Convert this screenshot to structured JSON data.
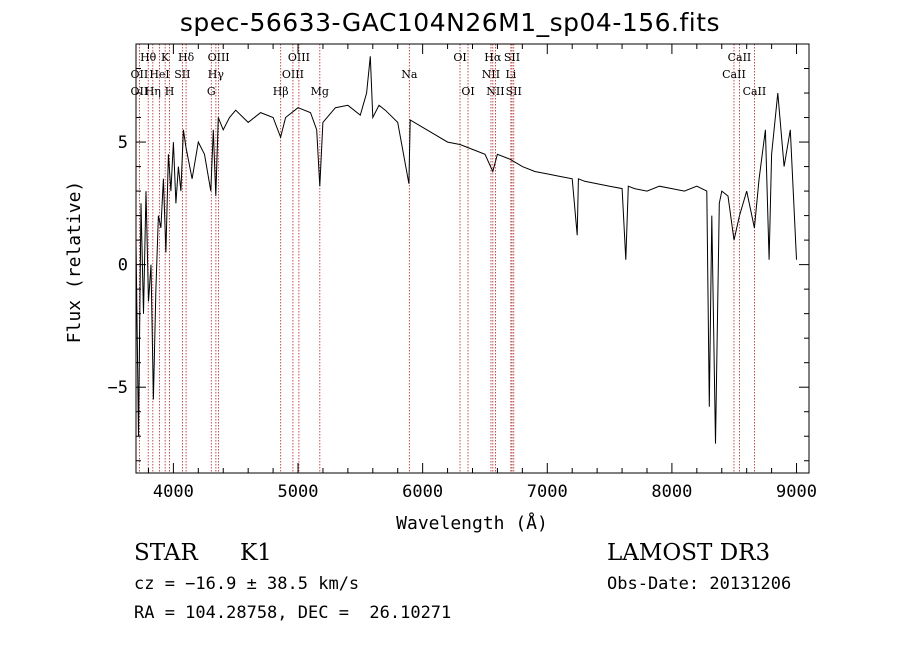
{
  "chart_data": {
    "type": "line",
    "title": "spec-56633-GAC104N26M1_sp04-156.fits",
    "xlabel": "Wavelength (Å)",
    "ylabel": "Flux (relative)",
    "xlim": [
      3700,
      9100
    ],
    "ylim": [
      -8.5,
      9.0
    ],
    "xticks": [
      4000,
      5000,
      6000,
      7000,
      8000,
      9000
    ],
    "yticks": [
      -5,
      0,
      5
    ],
    "series": [
      {
        "name": "flux",
        "x": [
          3700,
          3720,
          3740,
          3760,
          3780,
          3800,
          3820,
          3840,
          3860,
          3880,
          3900,
          3920,
          3940,
          3960,
          3980,
          4000,
          4020,
          4040,
          4060,
          4080,
          4100,
          4150,
          4200,
          4250,
          4300,
          4320,
          4340,
          4360,
          4400,
          4450,
          4500,
          4600,
          4700,
          4800,
          4860,
          4900,
          5000,
          5100,
          5150,
          5175,
          5200,
          5300,
          5400,
          5500,
          5550,
          5580,
          5600,
          5650,
          5700,
          5800,
          5890,
          5900,
          6000,
          6100,
          6200,
          6300,
          6400,
          6500,
          6563,
          6600,
          6700,
          6800,
          6900,
          7000,
          7100,
          7200,
          7240,
          7250,
          7300,
          7400,
          7500,
          7600,
          7630,
          7650,
          7700,
          7800,
          7900,
          8000,
          8100,
          8200,
          8280,
          8300,
          8320,
          8350,
          8380,
          8400,
          8450,
          8498,
          8542,
          8600,
          8662,
          8700,
          8750,
          8780,
          8800,
          8850,
          8900,
          8950,
          9000
        ],
        "y": [
          1.0,
          -7.0,
          2.5,
          -2.0,
          3.0,
          -1.5,
          0.0,
          -5.5,
          -1.0,
          2.0,
          1.5,
          3.5,
          0.5,
          4.5,
          3.0,
          5.0,
          2.5,
          4.0,
          3.0,
          5.5,
          4.8,
          3.5,
          5.0,
          4.5,
          3.0,
          5.5,
          2.8,
          6.0,
          5.5,
          6.0,
          6.3,
          5.8,
          6.2,
          6.0,
          5.2,
          6.0,
          6.4,
          6.2,
          5.5,
          3.2,
          5.8,
          6.4,
          6.5,
          6.1,
          7.0,
          8.5,
          6.0,
          6.5,
          6.3,
          5.8,
          3.3,
          5.9,
          5.6,
          5.3,
          5.0,
          4.9,
          4.7,
          4.5,
          3.8,
          4.5,
          4.3,
          4.0,
          3.8,
          3.7,
          3.6,
          3.5,
          1.2,
          3.5,
          3.4,
          3.3,
          3.2,
          3.1,
          0.2,
          3.2,
          3.1,
          3.0,
          3.2,
          3.1,
          3.0,
          3.2,
          3.0,
          -5.8,
          2.0,
          -7.3,
          2.5,
          3.0,
          2.8,
          1.0,
          2.0,
          3.0,
          1.5,
          3.5,
          5.5,
          0.2,
          4.5,
          7.0,
          4.0,
          5.5,
          0.2
        ]
      }
    ],
    "line_markers": [
      {
        "label": "Hθ",
        "wave": 3798,
        "row": 0
      },
      {
        "label": "OII",
        "wave": 3727,
        "row": 1
      },
      {
        "label": "OII",
        "wave": 3727,
        "row": 2
      },
      {
        "label": "K",
        "wave": 3934,
        "row": 0
      },
      {
        "label": "Hδ",
        "wave": 4102,
        "row": 0
      },
      {
        "label": "HeI",
        "wave": 3889,
        "row": 1
      },
      {
        "label": "SII",
        "wave": 4072,
        "row": 1
      },
      {
        "label": "Hη",
        "wave": 3835,
        "row": 2
      },
      {
        "label": "H",
        "wave": 3969,
        "row": 2
      },
      {
        "label": "OIII",
        "wave": 4363,
        "row": 0
      },
      {
        "label": "Hγ",
        "wave": 4341,
        "row": 1
      },
      {
        "label": "G",
        "wave": 4304,
        "row": 2
      },
      {
        "label": "OIII",
        "wave": 5007,
        "row": 0
      },
      {
        "label": "OIII",
        "wave": 4959,
        "row": 1
      },
      {
        "label": "Hβ",
        "wave": 4861,
        "row": 2
      },
      {
        "label": "Mg",
        "wave": 5175,
        "row": 2
      },
      {
        "label": "Na",
        "wave": 5893,
        "row": 1
      },
      {
        "label": "OI",
        "wave": 6300,
        "row": 0
      },
      {
        "label": "OI",
        "wave": 6364,
        "row": 2
      },
      {
        "label": "Hα",
        "wave": 6563,
        "row": 0
      },
      {
        "label": "SII",
        "wave": 6717,
        "row": 0
      },
      {
        "label": "NII",
        "wave": 6548,
        "row": 1
      },
      {
        "label": "Li",
        "wave": 6708,
        "row": 1
      },
      {
        "label": "NII",
        "wave": 6584,
        "row": 2
      },
      {
        "label": "SII",
        "wave": 6731,
        "row": 2
      },
      {
        "label": "CaII",
        "wave": 8542,
        "row": 0
      },
      {
        "label": "CaII",
        "wave": 8498,
        "row": 1
      },
      {
        "label": "CaII",
        "wave": 8662,
        "row": 2
      }
    ]
  },
  "info": {
    "object_class": "STAR",
    "subclass": "K1",
    "survey": "LAMOST DR3",
    "cz": "cz = −16.9 ± 38.5 km/s",
    "obs_date": "Obs-Date: 20131206",
    "coords": "RA = 104.28758, DEC =  26.10271"
  },
  "colors": {
    "line": "#000000",
    "marker": "#b22222",
    "background": "#ffffff"
  }
}
